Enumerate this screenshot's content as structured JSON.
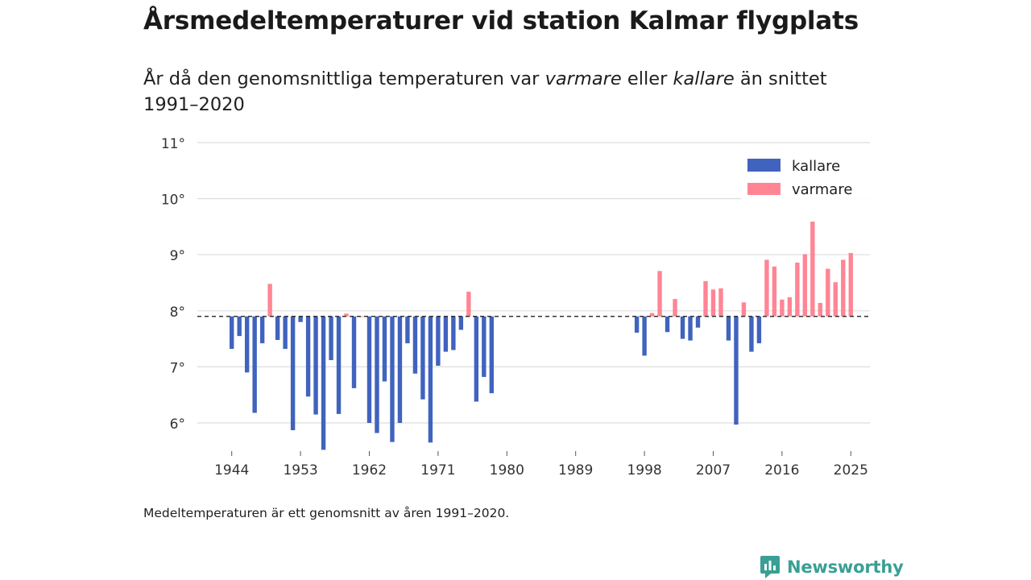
{
  "title": "Årsmedeltemperaturer vid station Kalmar flygplats",
  "subtitle": {
    "part1": "År då den genomsnittliga temperaturen var ",
    "warmer": "varmare",
    "part2": " eller ",
    "colder": "kallare",
    "part3": " än snittet 1991–2020"
  },
  "footnote": "Medeltemperaturen är ett genomsnitt av åren 1991–2020.",
  "brand": "Newsworthy",
  "colors": {
    "colder": "#4063be",
    "warmer": "#ff8595",
    "grid": "#dddddd",
    "brand": "#3a9f94"
  },
  "chart_data": {
    "type": "bar",
    "baseline": 7.9,
    "ylim": [
      5.55,
      11
    ],
    "xlim": [
      1939.5,
      2027.5
    ],
    "yticks": [
      6,
      7,
      8,
      9,
      10,
      11
    ],
    "ytick_labels": [
      "6°",
      "7°",
      "8°",
      "9°",
      "10°",
      "11°"
    ],
    "xticks": [
      1944,
      1953,
      1962,
      1971,
      1980,
      1989,
      1998,
      2007,
      2016,
      2025
    ],
    "xtick_labels": [
      "1944",
      "1953",
      "1962",
      "1971",
      "1980",
      "1989",
      "1998",
      "2007",
      "2016",
      "2025"
    ],
    "legend": {
      "colder": "kallare",
      "warmer": "varmare",
      "position": "top-right"
    },
    "series": {
      "years": [
        1944,
        1945,
        1946,
        1947,
        1948,
        1949,
        1950,
        1951,
        1952,
        1953,
        1954,
        1955,
        1956,
        1957,
        1958,
        1959,
        1960,
        1961,
        1962,
        1963,
        1964,
        1965,
        1966,
        1967,
        1968,
        1969,
        1970,
        1971,
        1972,
        1973,
        1974,
        1975,
        1976,
        1977,
        1978,
        1997,
        1998,
        1999,
        2000,
        2001,
        2002,
        2003,
        2004,
        2005,
        2006,
        2007,
        2008,
        2009,
        2010,
        2011,
        2012,
        2013,
        2014,
        2015,
        2016,
        2017,
        2018,
        2019,
        2020,
        2021,
        2022,
        2023,
        2024,
        2025
      ],
      "values": [
        7.32,
        7.55,
        6.9,
        6.18,
        7.42,
        8.48,
        7.48,
        7.32,
        5.87,
        7.8,
        6.47,
        6.15,
        5.52,
        7.12,
        6.16,
        7.95,
        6.62,
        7.9,
        6.0,
        5.82,
        6.74,
        5.66,
        6.0,
        7.42,
        6.88,
        6.42,
        5.65,
        7.02,
        7.27,
        7.3,
        7.66,
        8.34,
        6.38,
        6.82,
        6.53,
        7.61,
        7.2,
        7.96,
        8.71,
        7.62,
        8.21,
        7.5,
        7.47,
        7.7,
        8.53,
        8.38,
        8.4,
        7.47,
        5.97,
        8.15,
        7.27,
        7.42,
        8.91,
        8.79,
        8.2,
        8.24,
        8.86,
        9.01,
        9.59,
        8.14,
        8.75,
        8.51,
        8.91,
        9.03
      ]
    }
  }
}
